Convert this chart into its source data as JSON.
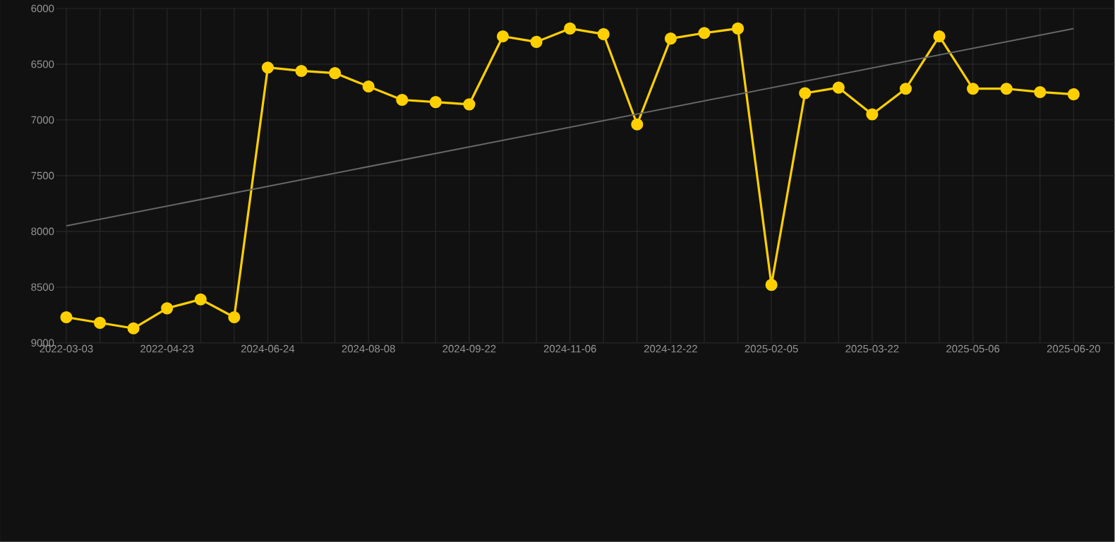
{
  "chart_data": {
    "type": "line",
    "categories": [
      "2022-03-03",
      null,
      null,
      "2022-04-23",
      null,
      null,
      "2024-06-24",
      null,
      null,
      "2024-08-08",
      null,
      null,
      "2024-09-22",
      null,
      null,
      "2024-11-06",
      null,
      null,
      "2024-12-22",
      null,
      null,
      "2025-02-05",
      null,
      null,
      "2025-03-22",
      null,
      null,
      "2025-05-06",
      null,
      null,
      "2025-06-20"
    ],
    "series": [
      {
        "color": "#ffd000",
        "marker": "circle",
        "values": [
          8770,
          8820,
          8870,
          8690,
          8610,
          8770,
          6530,
          6560,
          6580,
          6700,
          6820,
          6840,
          6860,
          6250,
          6300,
          6180,
          6230,
          7040,
          6270,
          6220,
          6180,
          8480,
          6760,
          6710,
          6950,
          6720,
          6250,
          6720,
          6720,
          6750,
          6770
        ]
      },
      {
        "color": "#666666",
        "marker": "none",
        "values": [
          7950,
          null,
          null,
          null,
          null,
          null,
          null,
          null,
          null,
          null,
          null,
          null,
          null,
          null,
          null,
          null,
          null,
          null,
          null,
          null,
          null,
          null,
          null,
          null,
          null,
          null,
          null,
          null,
          null,
          null,
          6180
        ]
      }
    ],
    "ylim": [
      9000,
      6000
    ],
    "yticks": [
      6000,
      6500,
      7000,
      7500,
      8000,
      8500,
      9000
    ],
    "grid": true
  }
}
